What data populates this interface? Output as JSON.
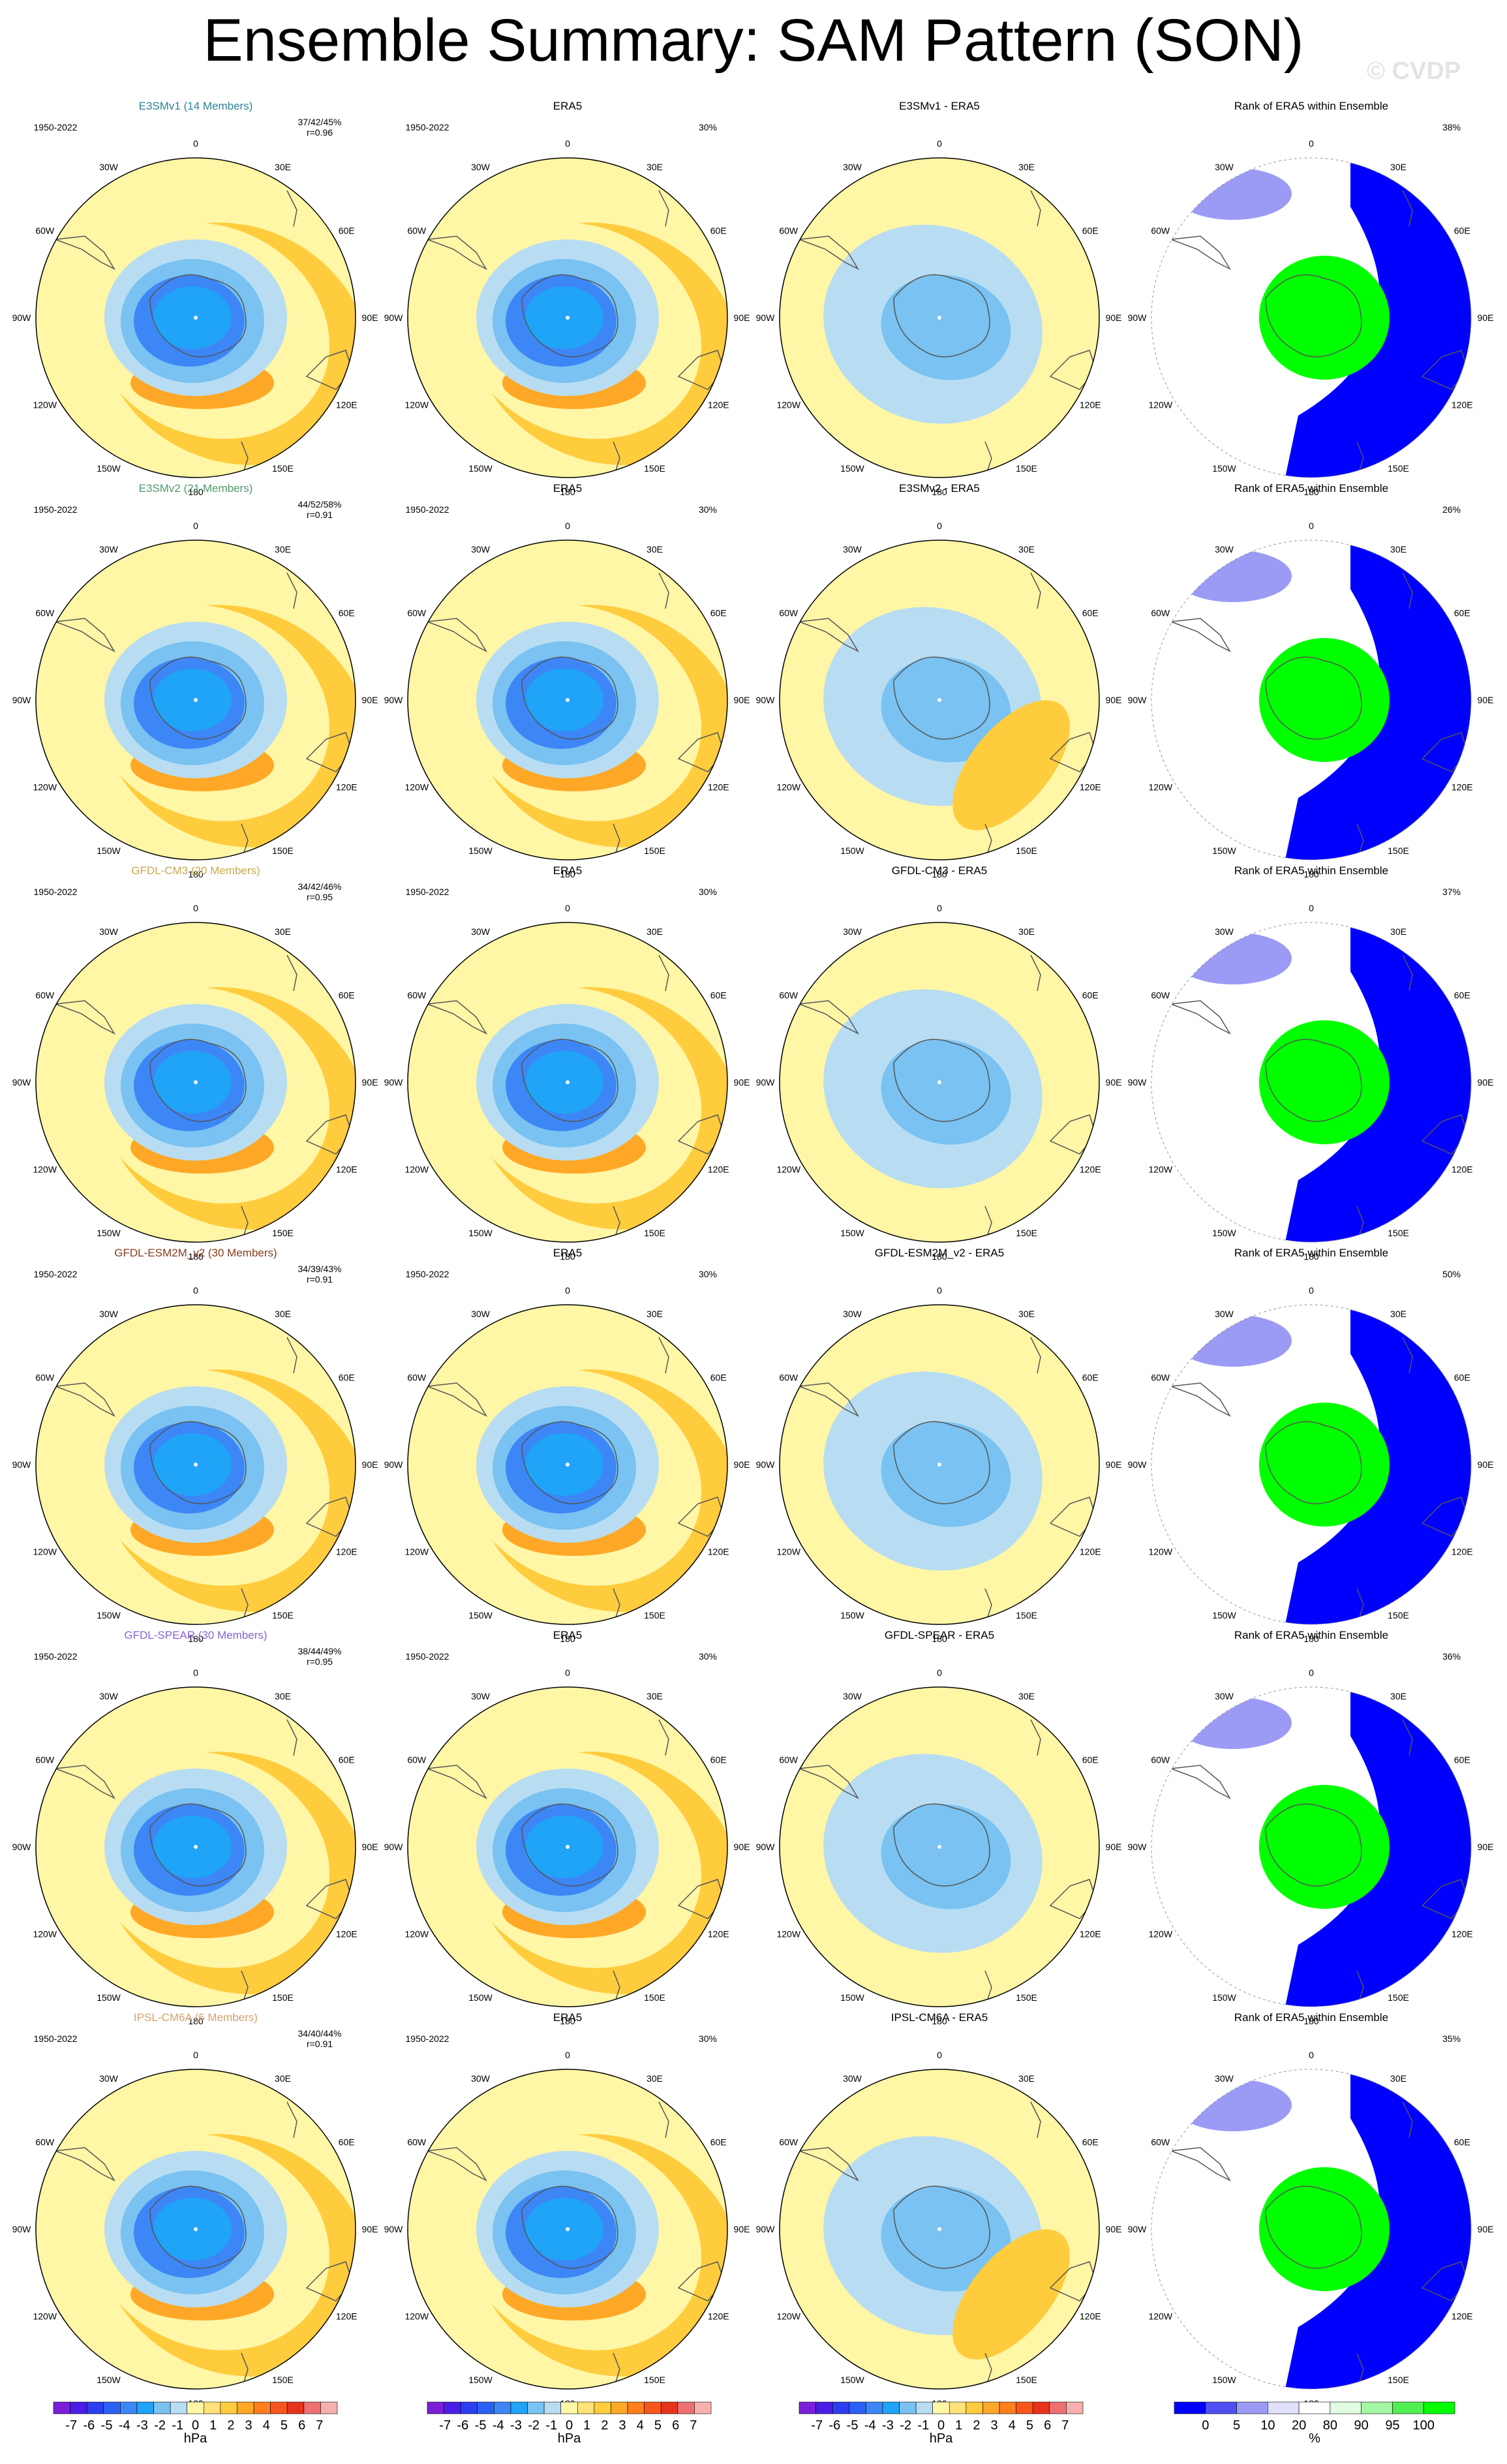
{
  "title": "Ensemble Summary: SAM Pattern (SON)",
  "watermark": "© CVDP",
  "period": "1950-2022",
  "longitude_labels": [
    "0",
    "30E",
    "60E",
    "90E",
    "120E",
    "150E",
    "180",
    "150W",
    "120W",
    "90W",
    "60W",
    "30W"
  ],
  "rows": [
    {
      "model": "E3SMv1",
      "ensemble_title": "E3SMv1 (14 Members)",
      "title_color": "#2e8296",
      "diff_title": "E3SMv1 - ERA5",
      "stats": "37/42/45%",
      "corr": "r=0.96",
      "rank_pct": "38%"
    },
    {
      "model": "E3SMv2",
      "ensemble_title": "E3SMv2 (21 Members)",
      "title_color": "#4f9a6c",
      "diff_title": "E3SMv2 - ERA5",
      "stats": "44/52/58%",
      "corr": "r=0.91",
      "rank_pct": "26%"
    },
    {
      "model": "GFDL-CM3",
      "ensemble_title": "GFDL-CM3 (20 Members)",
      "title_color": "#c9a84e",
      "diff_title": "GFDL-CM3 - ERA5",
      "stats": "34/42/46%",
      "corr": "r=0.95",
      "rank_pct": "37%"
    },
    {
      "model": "GFDL-ESM2M_v2",
      "ensemble_title": "GFDL-ESM2M_v2 (30 Members)",
      "title_color": "#8a3b1c",
      "diff_title": "GFDL-ESM2M_v2 - ERA5",
      "stats": "34/39/43%",
      "corr": "r=0.91",
      "rank_pct": "50%"
    },
    {
      "model": "GFDL-SPEAR",
      "ensemble_title": "GFDL-SPEAR (30 Members)",
      "title_color": "#8a63d2",
      "diff_title": "GFDL-SPEAR - ERA5",
      "stats": "38/44/49%",
      "corr": "r=0.95",
      "rank_pct": "36%"
    },
    {
      "model": "IPSL-CM6A",
      "ensemble_title": "IPSL-CM6A (6 Members)",
      "title_color": "#d8a06a",
      "diff_title": "IPSL-CM6A - ERA5",
      "stats": "34/40/44%",
      "corr": "r=0.91",
      "rank_pct": "35%"
    }
  ],
  "era5_title": "ERA5",
  "rank_title": "Rank of ERA5 within Ensemble",
  "pattern_legend": {
    "unit": "hPa",
    "labels": [
      "-7",
      "-6",
      "-5",
      "-4",
      "-3",
      "-2",
      "-1",
      "0",
      "1",
      "2",
      "3",
      "4",
      "5",
      "6",
      "7"
    ],
    "colors": [
      "#7b1fd9",
      "#4a1ee6",
      "#2c3ef0",
      "#2a60f3",
      "#3d86f6",
      "#1fa4f7",
      "#79c2f2",
      "#b8ddf2",
      "#fff6a6",
      "#ffe27a",
      "#ffcc3d",
      "#ffa827",
      "#ff7f1e",
      "#f8561c",
      "#e6331c",
      "#ee7070",
      "#f6b0b0"
    ]
  },
  "rank_legend": {
    "unit": "%",
    "labels": [
      "0",
      "5",
      "10",
      "20",
      "80",
      "90",
      "95",
      "100"
    ],
    "colors": [
      "#0000ff",
      "#5050f2",
      "#9b9bf5",
      "#e0e0fc",
      "#ffffff",
      "#e2fde2",
      "#a4f7a4",
      "#52f052",
      "#00ff00"
    ]
  },
  "colors": {
    "background_ocean": "#fff6a6",
    "negative_light": "#b8ddf2",
    "negative_mid": "#79c2f2",
    "negative_strong": "#3d86f6",
    "negative_core": "#1fa4f7",
    "positive": "#ffcc3d",
    "positive_strong": "#ffa827",
    "rank_blue": "#0000ff",
    "rank_green": "#00ff00",
    "rank_lightblue": "#9b9bf5"
  }
}
